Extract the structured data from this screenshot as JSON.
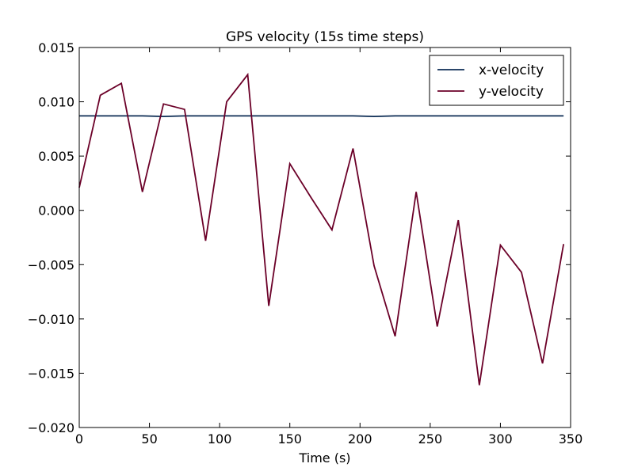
{
  "chart_data": {
    "type": "line",
    "title": "GPS velocity (15s time steps)",
    "xlabel": "Time (s)",
    "ylabel": "",
    "xlim": [
      0,
      350
    ],
    "ylim": [
      -0.02,
      0.015
    ],
    "xticks": [
      0,
      50,
      100,
      150,
      200,
      250,
      300,
      350
    ],
    "xtick_labels": [
      "0",
      "50",
      "100",
      "150",
      "200",
      "250",
      "300",
      "350"
    ],
    "yticks": [
      -0.02,
      -0.015,
      -0.01,
      -0.005,
      0.0,
      0.005,
      0.01,
      0.015
    ],
    "ytick_labels": [
      "−0.020",
      "−0.015",
      "−0.010",
      "−0.005",
      "0.000",
      "0.005",
      "0.010",
      "0.015"
    ],
    "grid": false,
    "legend_position": "top-right",
    "x": [
      0,
      15,
      30,
      45,
      60,
      75,
      90,
      105,
      120,
      135,
      150,
      165,
      180,
      195,
      210,
      225,
      240,
      255,
      270,
      285,
      300,
      315,
      330,
      345
    ],
    "series": [
      {
        "name": "x-velocity",
        "color": "#0c2c54",
        "values": [
          0.0087,
          0.0087,
          0.0087,
          0.0087,
          0.00865,
          0.0087,
          0.0087,
          0.0087,
          0.0087,
          0.0087,
          0.0087,
          0.0087,
          0.0087,
          0.0087,
          0.00865,
          0.0087,
          0.0087,
          0.0087,
          0.0087,
          0.0087,
          0.0087,
          0.0087,
          0.0087,
          0.0087
        ]
      },
      {
        "name": "y-velocity",
        "color": "#6b0028",
        "values": [
          0.0021,
          0.0106,
          0.0117,
          0.0017,
          0.0098,
          0.0093,
          -0.0028,
          0.01,
          0.0125,
          -0.0088,
          0.0043,
          0.0012,
          -0.0018,
          0.0057,
          -0.0051,
          -0.0116,
          0.0017,
          -0.0107,
          -0.0009,
          -0.0161,
          -0.0032,
          -0.0057,
          -0.0141,
          -0.0031
        ]
      }
    ]
  }
}
